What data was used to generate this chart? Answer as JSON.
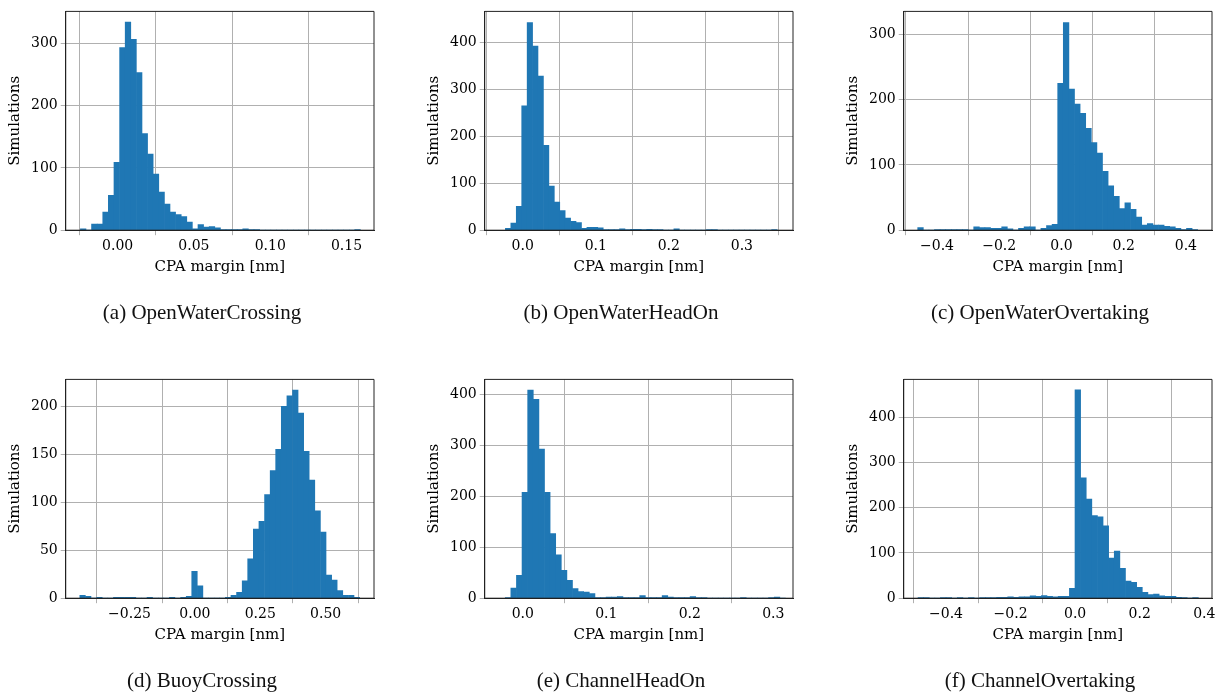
{
  "chart_data": [
    {
      "type": "histogram",
      "title": "(a) OpenWaterCrossing",
      "xlabel": "CPA margin [nm]",
      "ylabel": "Simulations",
      "color": "#1f77b4",
      "grid": true,
      "legend": false,
      "bins": [
        -0.0244,
        -0.0207,
        -0.0171,
        -0.0134,
        -0.0097,
        -0.0061,
        -0.0024,
        0.0013,
        0.005,
        0.0086,
        0.0123,
        0.016,
        0.0196,
        0.0233,
        0.027,
        0.0307,
        0.0343,
        0.038,
        0.0417,
        0.0453,
        0.049,
        0.0527,
        0.0563,
        0.06,
        0.0637,
        0.0674,
        0.071,
        0.0747,
        0.0784,
        0.082,
        0.0857,
        0.0894,
        0.093,
        0.0967,
        0.1004,
        0.1041,
        0.1077,
        0.1114,
        0.1151,
        0.1187,
        0.1224,
        0.1261,
        0.1297,
        0.1334,
        0.1371,
        0.1408,
        0.1444,
        0.1481,
        0.1518,
        0.1554,
        0.1591
      ],
      "values": [
        2,
        0,
        10,
        10,
        29,
        56,
        109,
        293,
        334,
        306,
        253,
        155,
        122,
        90,
        61,
        42,
        29,
        25,
        22,
        13,
        2,
        9,
        5,
        6,
        4,
        1,
        1,
        1,
        1,
        2,
        1,
        1,
        0,
        0,
        0,
        0,
        0,
        0,
        0,
        0,
        0,
        0,
        0,
        0,
        0,
        0,
        0,
        0,
        0,
        1
      ],
      "xlim": [
        -0.034,
        0.168
      ],
      "xticks": [
        {
          "value": 0,
          "label": "0.00"
        },
        {
          "value": 0.05,
          "label": "0.05"
        },
        {
          "value": 0.1,
          "label": "0.10"
        },
        {
          "value": 0.15,
          "label": "0.15"
        }
      ],
      "ylim": [
        0,
        351
      ],
      "yticks": [
        0,
        100,
        200,
        300
      ]
    },
    {
      "type": "histogram",
      "title": "(b) OpenWaterHeadOn",
      "xlabel": "CPA margin [nm]",
      "ylabel": "Simulations",
      "color": "#1f77b4",
      "grid": true,
      "legend": false,
      "bins": [
        -0.0237,
        -0.0163,
        -0.0088,
        -0.0014,
        0.0061,
        0.0135,
        0.0209,
        0.0284,
        0.0358,
        0.0433,
        0.0507,
        0.0581,
        0.0656,
        0.073,
        0.0805,
        0.0879,
        0.0953,
        0.1028,
        0.1102,
        0.1177,
        0.1251,
        0.1325,
        0.14,
        0.1474,
        0.1549,
        0.1623,
        0.1697,
        0.1772,
        0.1846,
        0.1921,
        0.1995,
        0.2069,
        0.2144,
        0.2218,
        0.2293,
        0.2367,
        0.2441,
        0.2516,
        0.259,
        0.2665,
        0.2739,
        0.2813,
        0.2888,
        0.2962,
        0.3037,
        0.3111,
        0.3185,
        0.326,
        0.3334,
        0.3409,
        0.3483
      ],
      "values": [
        4,
        15,
        51,
        265,
        442,
        392,
        328,
        181,
        94,
        60,
        42,
        26,
        19,
        16,
        4,
        6,
        6,
        5,
        1,
        1,
        1,
        3,
        1,
        2,
        2,
        1,
        2,
        1,
        1,
        0,
        0,
        3,
        0,
        0,
        0,
        0,
        0,
        1,
        1,
        0,
        0,
        0,
        0,
        0,
        0,
        0,
        0,
        0,
        0,
        1
      ],
      "xlim": [
        -0.052,
        0.37
      ],
      "xticks": [
        {
          "value": 0,
          "label": "0.0"
        },
        {
          "value": 0.1,
          "label": "0.1"
        },
        {
          "value": 0.2,
          "label": "0.2"
        },
        {
          "value": 0.3,
          "label": "0.3"
        }
      ],
      "ylim": [
        0,
        466
      ],
      "yticks": [
        0,
        100,
        200,
        300,
        400
      ]
    },
    {
      "type": "histogram",
      "title": "(c) OpenWaterOvertaking",
      "xlabel": "CPA margin [nm]",
      "ylabel": "Simulations",
      "color": "#1f77b4",
      "grid": true,
      "legend": false,
      "bins": [
        -0.462,
        -0.444,
        -0.426,
        -0.408,
        -0.39,
        -0.372,
        -0.354,
        -0.336,
        -0.318,
        -0.3,
        -0.282,
        -0.264,
        -0.246,
        -0.228,
        -0.21,
        -0.192,
        -0.174,
        -0.156,
        -0.138,
        -0.12,
        -0.102,
        -0.084,
        -0.066,
        -0.048,
        -0.03,
        -0.012,
        0.006,
        0.024,
        0.042,
        0.06,
        0.078,
        0.096,
        0.114,
        0.132,
        0.15,
        0.168,
        0.186,
        0.204,
        0.222,
        0.24,
        0.258,
        0.276,
        0.294,
        0.312,
        0.33,
        0.348,
        0.366,
        0.384,
        0.402,
        0.42,
        0.438
      ],
      "values": [
        4,
        0,
        0,
        1,
        1,
        1,
        1,
        1,
        1,
        0,
        5,
        4,
        4,
        3,
        3,
        5,
        2,
        0,
        3,
        5,
        5,
        0,
        3,
        7,
        9,
        225,
        318,
        216,
        193,
        179,
        156,
        134,
        118,
        90,
        68,
        52,
        33,
        42,
        32,
        20,
        8,
        10,
        8,
        8,
        6,
        5,
        3,
        1,
        3,
        1
      ],
      "xlim": [
        -0.507,
        0.484
      ],
      "xticks": [
        {
          "value": -0.4,
          "label": "−0.4"
        },
        {
          "value": -0.2,
          "label": "−0.2"
        },
        {
          "value": 0,
          "label": "0.0"
        },
        {
          "value": 0.2,
          "label": "0.2"
        },
        {
          "value": 0.4,
          "label": "0.4"
        }
      ],
      "ylim": [
        0,
        335
      ],
      "yticks": [
        0,
        100,
        200,
        300
      ]
    },
    {
      "type": "histogram",
      "title": "(d) BuoyCrossing",
      "xlabel": "CPA margin [nm]",
      "ylabel": "Simulations",
      "color": "#1f77b4",
      "grid": true,
      "legend": false,
      "bins": [
        -0.44,
        -0.419,
        -0.397,
        -0.376,
        -0.354,
        -0.333,
        -0.312,
        -0.29,
        -0.269,
        -0.247,
        -0.226,
        -0.205,
        -0.183,
        -0.162,
        -0.14,
        -0.119,
        -0.098,
        -0.076,
        -0.055,
        -0.033,
        -0.012,
        0.009,
        0.031,
        0.052,
        0.074,
        0.095,
        0.116,
        0.138,
        0.159,
        0.181,
        0.202,
        0.223,
        0.245,
        0.266,
        0.288,
        0.309,
        0.33,
        0.352,
        0.373,
        0.395,
        0.416,
        0.437,
        0.459,
        0.48,
        0.502,
        0.523,
        0.544,
        0.566,
        0.587,
        0.609,
        0.63
      ],
      "values": [
        3,
        2,
        0,
        1,
        0,
        0,
        1,
        1,
        1,
        1,
        0,
        0,
        1,
        0,
        0,
        0,
        1,
        0,
        1,
        2,
        28,
        13,
        0,
        0,
        0,
        0,
        1,
        3,
        6,
        18,
        41,
        72,
        80,
        108,
        133,
        155,
        200,
        211,
        217,
        193,
        153,
        123,
        91,
        69,
        24,
        19,
        8,
        3,
        3,
        1
      ],
      "xlim": [
        -0.494,
        0.685
      ],
      "xticks": [
        {
          "value": -0.25,
          "label": "−0.25"
        },
        {
          "value": 0,
          "label": "0.00"
        },
        {
          "value": 0.25,
          "label": "0.25"
        },
        {
          "value": 0.5,
          "label": "0.50"
        }
      ],
      "ylim": [
        0,
        228
      ],
      "yticks": [
        0,
        50,
        100,
        150,
        200
      ]
    },
    {
      "type": "histogram",
      "title": "(e) ChannelHeadOn",
      "xlabel": "CPA margin [nm]",
      "ylabel": "Simulations",
      "color": "#1f77b4",
      "grid": true,
      "legend": false,
      "bins": [
        -0.021,
        -0.0143,
        -0.0076,
        -0.0009,
        0.0058,
        0.0126,
        0.0193,
        0.026,
        0.0327,
        0.0394,
        0.0461,
        0.0528,
        0.0595,
        0.0662,
        0.0729,
        0.0797,
        0.0864,
        0.0931,
        0.0998,
        0.1065,
        0.1132,
        0.1199,
        0.1266,
        0.1333,
        0.14,
        0.1468,
        0.1535,
        0.1602,
        0.1669,
        0.1736,
        0.1803,
        0.187,
        0.1937,
        0.2004,
        0.2071,
        0.2139,
        0.2206,
        0.2273,
        0.234,
        0.2407,
        0.2474,
        0.2541,
        0.2608,
        0.2675,
        0.2742,
        0.281,
        0.2877,
        0.2944,
        0.3011,
        0.3078,
        0.3145
      ],
      "values": [
        1,
        20,
        45,
        208,
        409,
        391,
        293,
        208,
        127,
        85,
        55,
        35,
        19,
        13,
        12,
        9,
        1,
        1,
        2,
        2,
        3,
        1,
        1,
        1,
        5,
        1,
        1,
        1,
        5,
        2,
        1,
        1,
        1,
        3,
        1,
        1,
        0,
        0,
        0,
        0,
        0,
        0,
        1,
        0,
        0,
        0,
        0,
        1,
        2,
        0
      ],
      "xlim": [
        -0.0456,
        0.3236
      ],
      "xticks": [
        {
          "value": 0,
          "label": "0.0"
        },
        {
          "value": 0.1,
          "label": "0.1"
        },
        {
          "value": 0.2,
          "label": "0.2"
        },
        {
          "value": 0.3,
          "label": "0.3"
        }
      ],
      "ylim": [
        0,
        430
      ],
      "yticks": [
        0,
        100,
        200,
        300,
        400
      ]
    },
    {
      "type": "histogram",
      "title": "(f) ChannelOvertaking",
      "xlabel": "CPA margin [nm]",
      "ylabel": "Simulations",
      "color": "#1f77b4",
      "grid": true,
      "legend": false,
      "bins": [
        -0.4867,
        -0.4693,
        -0.452,
        -0.4346,
        -0.4172,
        -0.3999,
        -0.3825,
        -0.3651,
        -0.3477,
        -0.3304,
        -0.313,
        -0.2956,
        -0.2783,
        -0.2609,
        -0.2435,
        -0.2262,
        -0.2088,
        -0.1914,
        -0.1741,
        -0.1567,
        -0.1393,
        -0.122,
        -0.1046,
        -0.0872,
        -0.0698,
        -0.0525,
        -0.0351,
        -0.0177,
        -0.0004,
        0.017,
        0.0344,
        0.0517,
        0.0691,
        0.0865,
        0.1038,
        0.1212,
        0.1386,
        0.1559,
        0.1733,
        0.1907,
        0.208,
        0.2254,
        0.2428,
        0.2602,
        0.2775,
        0.2949,
        0.3123,
        0.3296,
        0.347,
        0.3644,
        0.3817
      ],
      "values": [
        1,
        1,
        0,
        0,
        1,
        1,
        0,
        1,
        0,
        1,
        0,
        1,
        1,
        1,
        2,
        2,
        3,
        2,
        3,
        3,
        5,
        4,
        6,
        4,
        3,
        4,
        4,
        22,
        461,
        266,
        219,
        183,
        180,
        160,
        89,
        104,
        66,
        38,
        35,
        24,
        13,
        8,
        9,
        5,
        4,
        4,
        2,
        1,
        0,
        1
      ],
      "xlim": [
        -0.531,
        0.424
      ],
      "xticks": [
        {
          "value": -0.4,
          "label": "−0.4"
        },
        {
          "value": -0.2,
          "label": "−0.2"
        },
        {
          "value": 0,
          "label": "0.0"
        },
        {
          "value": 0.2,
          "label": "0.2"
        },
        {
          "value": 0.4,
          "label": "0.4"
        }
      ],
      "ylim": [
        0,
        484
      ],
      "yticks": [
        0,
        100,
        200,
        300,
        400
      ]
    }
  ]
}
